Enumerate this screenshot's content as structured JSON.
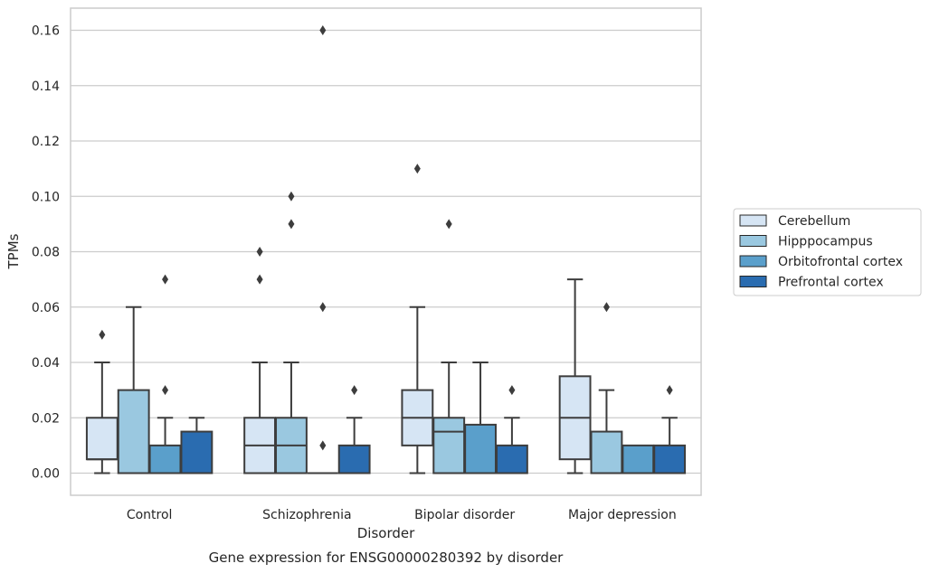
{
  "chart_data": {
    "type": "boxplot",
    "title": "Gene expression for ENSG00000280392 by disorder",
    "xlabel": "Disorder",
    "ylabel": "TPMs",
    "ylim": [
      -0.008,
      0.168
    ],
    "yticks": [
      0.0,
      0.02,
      0.04,
      0.06,
      0.08,
      0.1,
      0.12,
      0.14,
      0.16
    ],
    "ytick_labels": [
      "0.00",
      "0.02",
      "0.04",
      "0.06",
      "0.08",
      "0.10",
      "0.12",
      "0.14",
      "0.16"
    ],
    "grid": "horizontal",
    "legend_position": "right",
    "categories": [
      "Control",
      "Schizophrenia",
      "Bipolar disorder",
      "Major depression"
    ],
    "series": [
      {
        "name": "Cerebellum",
        "color": "#d6e5f4",
        "boxes": [
          {
            "whislo": 0.0,
            "q1": 0.005,
            "med": 0.005,
            "q3": 0.02,
            "whishi": 0.04,
            "fliers": [
              0.05
            ]
          },
          {
            "whislo": 0.0,
            "q1": 0.0,
            "med": 0.01,
            "q3": 0.02,
            "whishi": 0.04,
            "fliers": [
              0.07,
              0.08
            ]
          },
          {
            "whislo": 0.0,
            "q1": 0.01,
            "med": 0.02,
            "q3": 0.03,
            "whishi": 0.06,
            "fliers": [
              0.11
            ]
          },
          {
            "whislo": 0.0,
            "q1": 0.005,
            "med": 0.02,
            "q3": 0.035,
            "whishi": 0.07,
            "fliers": []
          }
        ]
      },
      {
        "name": "Hipppocampus",
        "color": "#9ac8e0",
        "boxes": [
          {
            "whislo": 0.0,
            "q1": 0.0,
            "med": 0.0,
            "q3": 0.03,
            "whishi": 0.06,
            "fliers": []
          },
          {
            "whislo": 0.0,
            "q1": 0.0,
            "med": 0.01,
            "q3": 0.02,
            "whishi": 0.04,
            "fliers": [
              0.09,
              0.1
            ]
          },
          {
            "whislo": 0.0,
            "q1": 0.0,
            "med": 0.015,
            "q3": 0.02,
            "whishi": 0.04,
            "fliers": [
              0.09
            ]
          },
          {
            "whislo": 0.0,
            "q1": 0.0,
            "med": 0.0,
            "q3": 0.015,
            "whishi": 0.03,
            "fliers": [
              0.06
            ]
          }
        ]
      },
      {
        "name": "Orbitofrontal cortex",
        "color": "#5a9fcb",
        "boxes": [
          {
            "whislo": 0.0,
            "q1": 0.0,
            "med": 0.0,
            "q3": 0.01,
            "whishi": 0.02,
            "fliers": [
              0.03,
              0.07
            ]
          },
          {
            "whislo": 0.0,
            "q1": 0.0,
            "med": 0.0,
            "q3": 0.0,
            "whishi": 0.0,
            "fliers": [
              0.01,
              0.06,
              0.16
            ]
          },
          {
            "whislo": 0.0,
            "q1": 0.0,
            "med": 0.0,
            "q3": 0.0175,
            "whishi": 0.04,
            "fliers": []
          },
          {
            "whislo": 0.0,
            "q1": 0.0,
            "med": 0.0,
            "q3": 0.01,
            "whishi": 0.01,
            "fliers": []
          }
        ]
      },
      {
        "name": "Prefrontal cortex",
        "color": "#2a6cb0",
        "boxes": [
          {
            "whislo": 0.0,
            "q1": 0.0,
            "med": 0.0,
            "q3": 0.015,
            "whishi": 0.02,
            "fliers": []
          },
          {
            "whislo": 0.0,
            "q1": 0.0,
            "med": 0.0,
            "q3": 0.01,
            "whishi": 0.02,
            "fliers": [
              0.03
            ]
          },
          {
            "whislo": 0.0,
            "q1": 0.0,
            "med": 0.0,
            "q3": 0.01,
            "whishi": 0.02,
            "fliers": [
              0.03
            ]
          },
          {
            "whislo": 0.0,
            "q1": 0.0,
            "med": 0.0,
            "q3": 0.01,
            "whishi": 0.02,
            "fliers": [
              0.03
            ]
          }
        ]
      }
    ],
    "style": {
      "grid_color": "#cccccc",
      "spine_color": "#cccccc",
      "line_color": "#3d3d3d",
      "flier_color": "#3d3d3d"
    }
  }
}
